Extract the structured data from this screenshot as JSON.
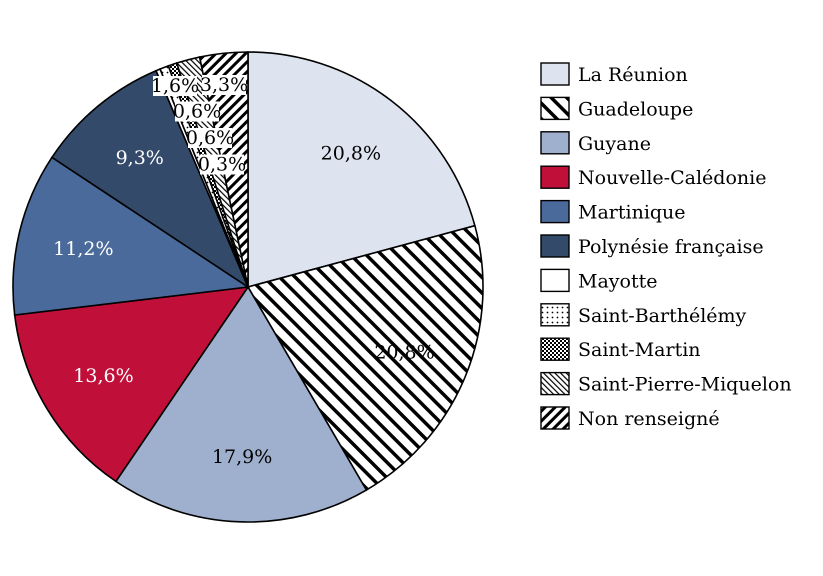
{
  "chart_data": {
    "type": "pie",
    "title": "",
    "legend_position": "right",
    "slices": [
      {
        "label": "La Réunion",
        "value": 20.8,
        "value_label": "20,8%",
        "color": "#dde4ef",
        "pattern": "none",
        "text_color": "#000000"
      },
      {
        "label": "Guadeloupe",
        "value": 20.8,
        "value_label": "20,8%",
        "color": "#ffffff",
        "pattern": "diag-wide",
        "text_color": "#000000"
      },
      {
        "label": "Guyane",
        "value": 17.9,
        "value_label": "17,9%",
        "color": "#9fb0ce",
        "pattern": "none",
        "text_color": "#000000"
      },
      {
        "label": "Nouvelle-Calédonie",
        "value": 13.6,
        "value_label": "13,6%",
        "color": "#c0103a",
        "pattern": "none",
        "text_color": "#ffffff"
      },
      {
        "label": "Martinique",
        "value": 11.2,
        "value_label": "11,2%",
        "color": "#4a6a9b",
        "pattern": "none",
        "text_color": "#ffffff"
      },
      {
        "label": "Polynésie française",
        "value": 9.3,
        "value_label": "9,3%",
        "color": "#344a6b",
        "pattern": "none",
        "text_color": "#ffffff"
      },
      {
        "label": "Mayotte",
        "value": 0.3,
        "value_label": "0,3%",
        "color": "#ffffff",
        "pattern": "none",
        "text_color": "#000000"
      },
      {
        "label": "Saint-Barthélémy",
        "value": 0.6,
        "value_label": "0,6%",
        "color": "#ffffff",
        "pattern": "dots",
        "text_color": "#000000"
      },
      {
        "label": "Saint-Martin",
        "value": 0.6,
        "value_label": "0,6%",
        "color": "#ffffff",
        "pattern": "checker",
        "text_color": "#000000"
      },
      {
        "label": "Saint-Pierre-Miquelon",
        "value": 1.6,
        "value_label": "1,6%",
        "color": "#ffffff",
        "pattern": "diag-fine",
        "text_color": "#000000"
      },
      {
        "label": "Non renseigné",
        "value": 3.3,
        "value_label": "3,3%",
        "color": "#ffffff",
        "pattern": "diag-bold",
        "text_color": "#000000"
      }
    ]
  }
}
